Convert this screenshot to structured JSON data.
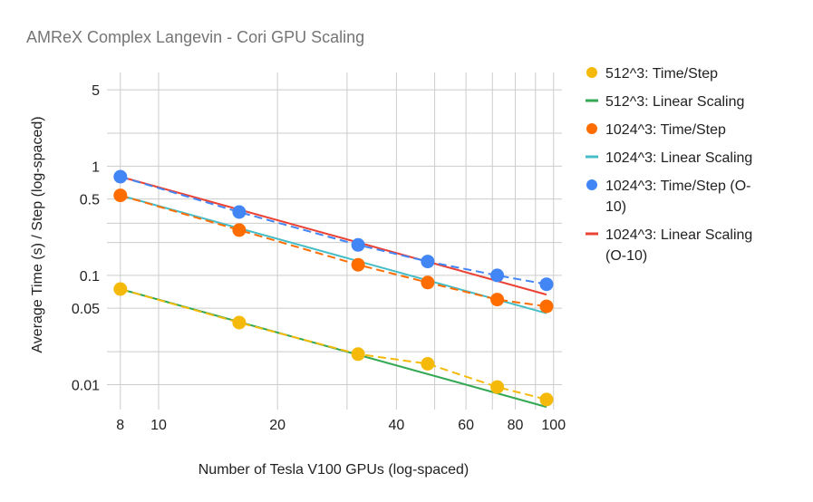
{
  "chart_data": {
    "type": "line",
    "title": "AMReX Complex Langevin - Cori GPU Scaling",
    "xlabel": "Number of Tesla V100 GPUs (log-spaced)",
    "ylabel": "Average Time (s) / Step (log-spaced)",
    "x_scale": "log",
    "y_scale": "log",
    "xlim": [
      7.4,
      105
    ],
    "ylim": [
      0.0065,
      7.2
    ],
    "x_ticks": [
      {
        "value": 8,
        "label": "8"
      },
      {
        "value": 10,
        "label": "10"
      },
      {
        "value": 20,
        "label": "20"
      },
      {
        "value": 40,
        "label": "40"
      },
      {
        "value": 60,
        "label": "60"
      },
      {
        "value": 80,
        "label": "80"
      },
      {
        "value": 100,
        "label": "100"
      }
    ],
    "y_ticks": [
      {
        "value": 0.01,
        "label": "0.01"
      },
      {
        "value": 0.05,
        "label": "0.05"
      },
      {
        "value": 0.1,
        "label": "0.1"
      },
      {
        "value": 0.5,
        "label": "0.5"
      },
      {
        "value": 1,
        "label": "1"
      },
      {
        "value": 5,
        "label": "5"
      }
    ],
    "x_minor_grid": [
      30,
      50,
      70,
      90
    ],
    "y_minor_grid": [
      0.02,
      0.2,
      0.3,
      2
    ],
    "grid": true,
    "legend_position": "right",
    "series": [
      {
        "name": "512^3: Time/Step",
        "color": "#F5BA09",
        "style": "dashed-markers",
        "x": [
          8,
          16,
          32,
          48,
          72,
          96
        ],
        "y": [
          0.075,
          0.037,
          0.019,
          0.0155,
          0.0095,
          0.0073
        ]
      },
      {
        "name": "512^3: Linear Scaling",
        "color": "#34A853",
        "style": "line",
        "x": [
          8,
          96
        ],
        "y": [
          0.075,
          0.00625
        ]
      },
      {
        "name": "1024^3: Time/Step",
        "color": "#FF6D01",
        "style": "dashed-markers",
        "x": [
          8,
          16,
          32,
          48,
          72,
          96
        ],
        "y": [
          0.54,
          0.26,
          0.125,
          0.086,
          0.06,
          0.052
        ]
      },
      {
        "name": "1024^3: Linear Scaling",
        "color": "#46BDC6",
        "style": "line",
        "x": [
          8,
          96
        ],
        "y": [
          0.54,
          0.045
        ]
      },
      {
        "name": "1024^3: Time/Step (O-10)",
        "color": "#4285F4",
        "style": "dashed-markers",
        "x": [
          8,
          16,
          32,
          48,
          72,
          96
        ],
        "y": [
          0.8,
          0.38,
          0.19,
          0.134,
          0.1,
          0.083
        ]
      },
      {
        "name": "1024^3: Linear Scaling (O-10)",
        "color": "#EA4335",
        "style": "line",
        "x": [
          8,
          96
        ],
        "y": [
          0.8,
          0.0667
        ]
      }
    ],
    "legend": [
      {
        "lines": [
          "512^3: Time/Step"
        ],
        "color": "#F5BA09",
        "marker": "circle"
      },
      {
        "lines": [
          "512^3: Linear Scaling"
        ],
        "color": "#34A853",
        "marker": "line"
      },
      {
        "lines": [
          "1024^3: Time/Step"
        ],
        "color": "#FF6D01",
        "marker": "circle"
      },
      {
        "lines": [
          "1024^3: Linear Scaling"
        ],
        "color": "#46BDC6",
        "marker": "line"
      },
      {
        "lines": [
          "1024^3: Time/Step (O-",
          "10)"
        ],
        "color": "#4285F4",
        "marker": "circle"
      },
      {
        "lines": [
          "1024^3: Linear Scaling",
          "(O-10)"
        ],
        "color": "#EA4335",
        "marker": "line"
      }
    ]
  }
}
